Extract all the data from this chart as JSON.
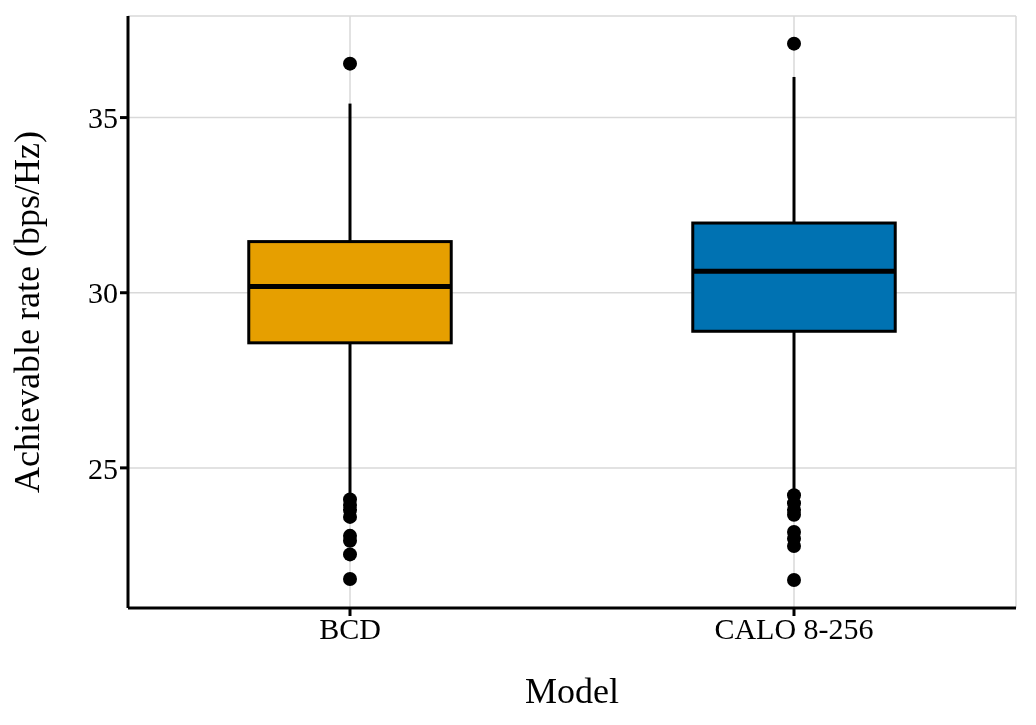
{
  "chart_data": {
    "type": "box",
    "xlabel": "Model",
    "ylabel": "Achievable rate (bps/Hz)",
    "categories": [
      "BCD",
      "CALO 8-256"
    ],
    "colors": [
      "#e69f00",
      "#0072b2"
    ],
    "boxes": [
      {
        "low": 24.24,
        "q1": 28.57,
        "median": 30.18,
        "q3": 31.46,
        "high": 35.4,
        "outliers": [
          36.54,
          24.1,
          23.94,
          23.8,
          23.6,
          23.06,
          22.92,
          22.53,
          21.83
        ]
      },
      {
        "low": 24.39,
        "q1": 28.9,
        "median": 30.61,
        "q3": 31.99,
        "high": 36.16,
        "outliers": [
          37.11,
          24.22,
          23.99,
          23.8,
          23.66,
          23.17,
          22.98,
          22.77,
          21.8
        ]
      }
    ],
    "ylim": [
      21.0,
      37.9
    ],
    "yticks": [
      25,
      30,
      35
    ],
    "grid": true
  }
}
